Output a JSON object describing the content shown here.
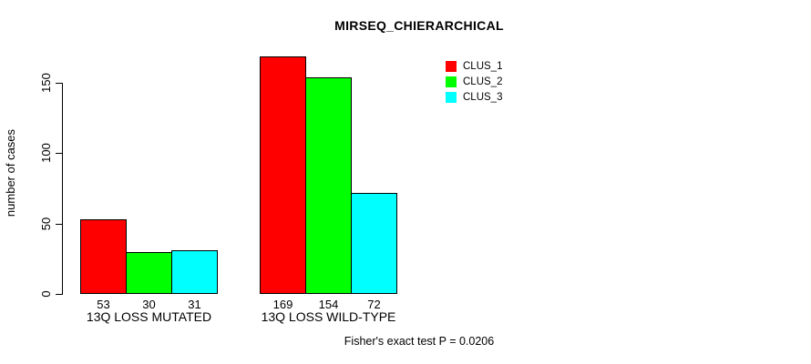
{
  "chart_data": {
    "type": "bar",
    "title": "MIRSEQ_CHIERARCHICAL",
    "xlabel": "",
    "ylabel": "number of cases",
    "ylim": [
      0,
      175
    ],
    "yticks": [
      0,
      50,
      100,
      150
    ],
    "grid": false,
    "legend_position": "top-right",
    "categories": [
      "13Q LOSS MUTATED",
      "13Q LOSS WILD-TYPE"
    ],
    "series": [
      {
        "name": "CLUS_1",
        "color": "#ff0000",
        "values": [
          53,
          169
        ]
      },
      {
        "name": "CLUS_2",
        "color": "#00ff00",
        "values": [
          30,
          154
        ]
      },
      {
        "name": "CLUS_3",
        "color": "#00ffff",
        "values": [
          31,
          72
        ]
      }
    ],
    "bar_value_labels": [
      [
        "53",
        "30",
        "31"
      ],
      [
        "169",
        "154",
        "72"
      ]
    ],
    "annotation": "Fisher's exact test P = 0.0206"
  },
  "colors": {
    "background": "#ffffff",
    "axis": "#000000",
    "clus_1": "#ff0000",
    "clus_2": "#00ff00",
    "clus_3": "#00ffff"
  }
}
